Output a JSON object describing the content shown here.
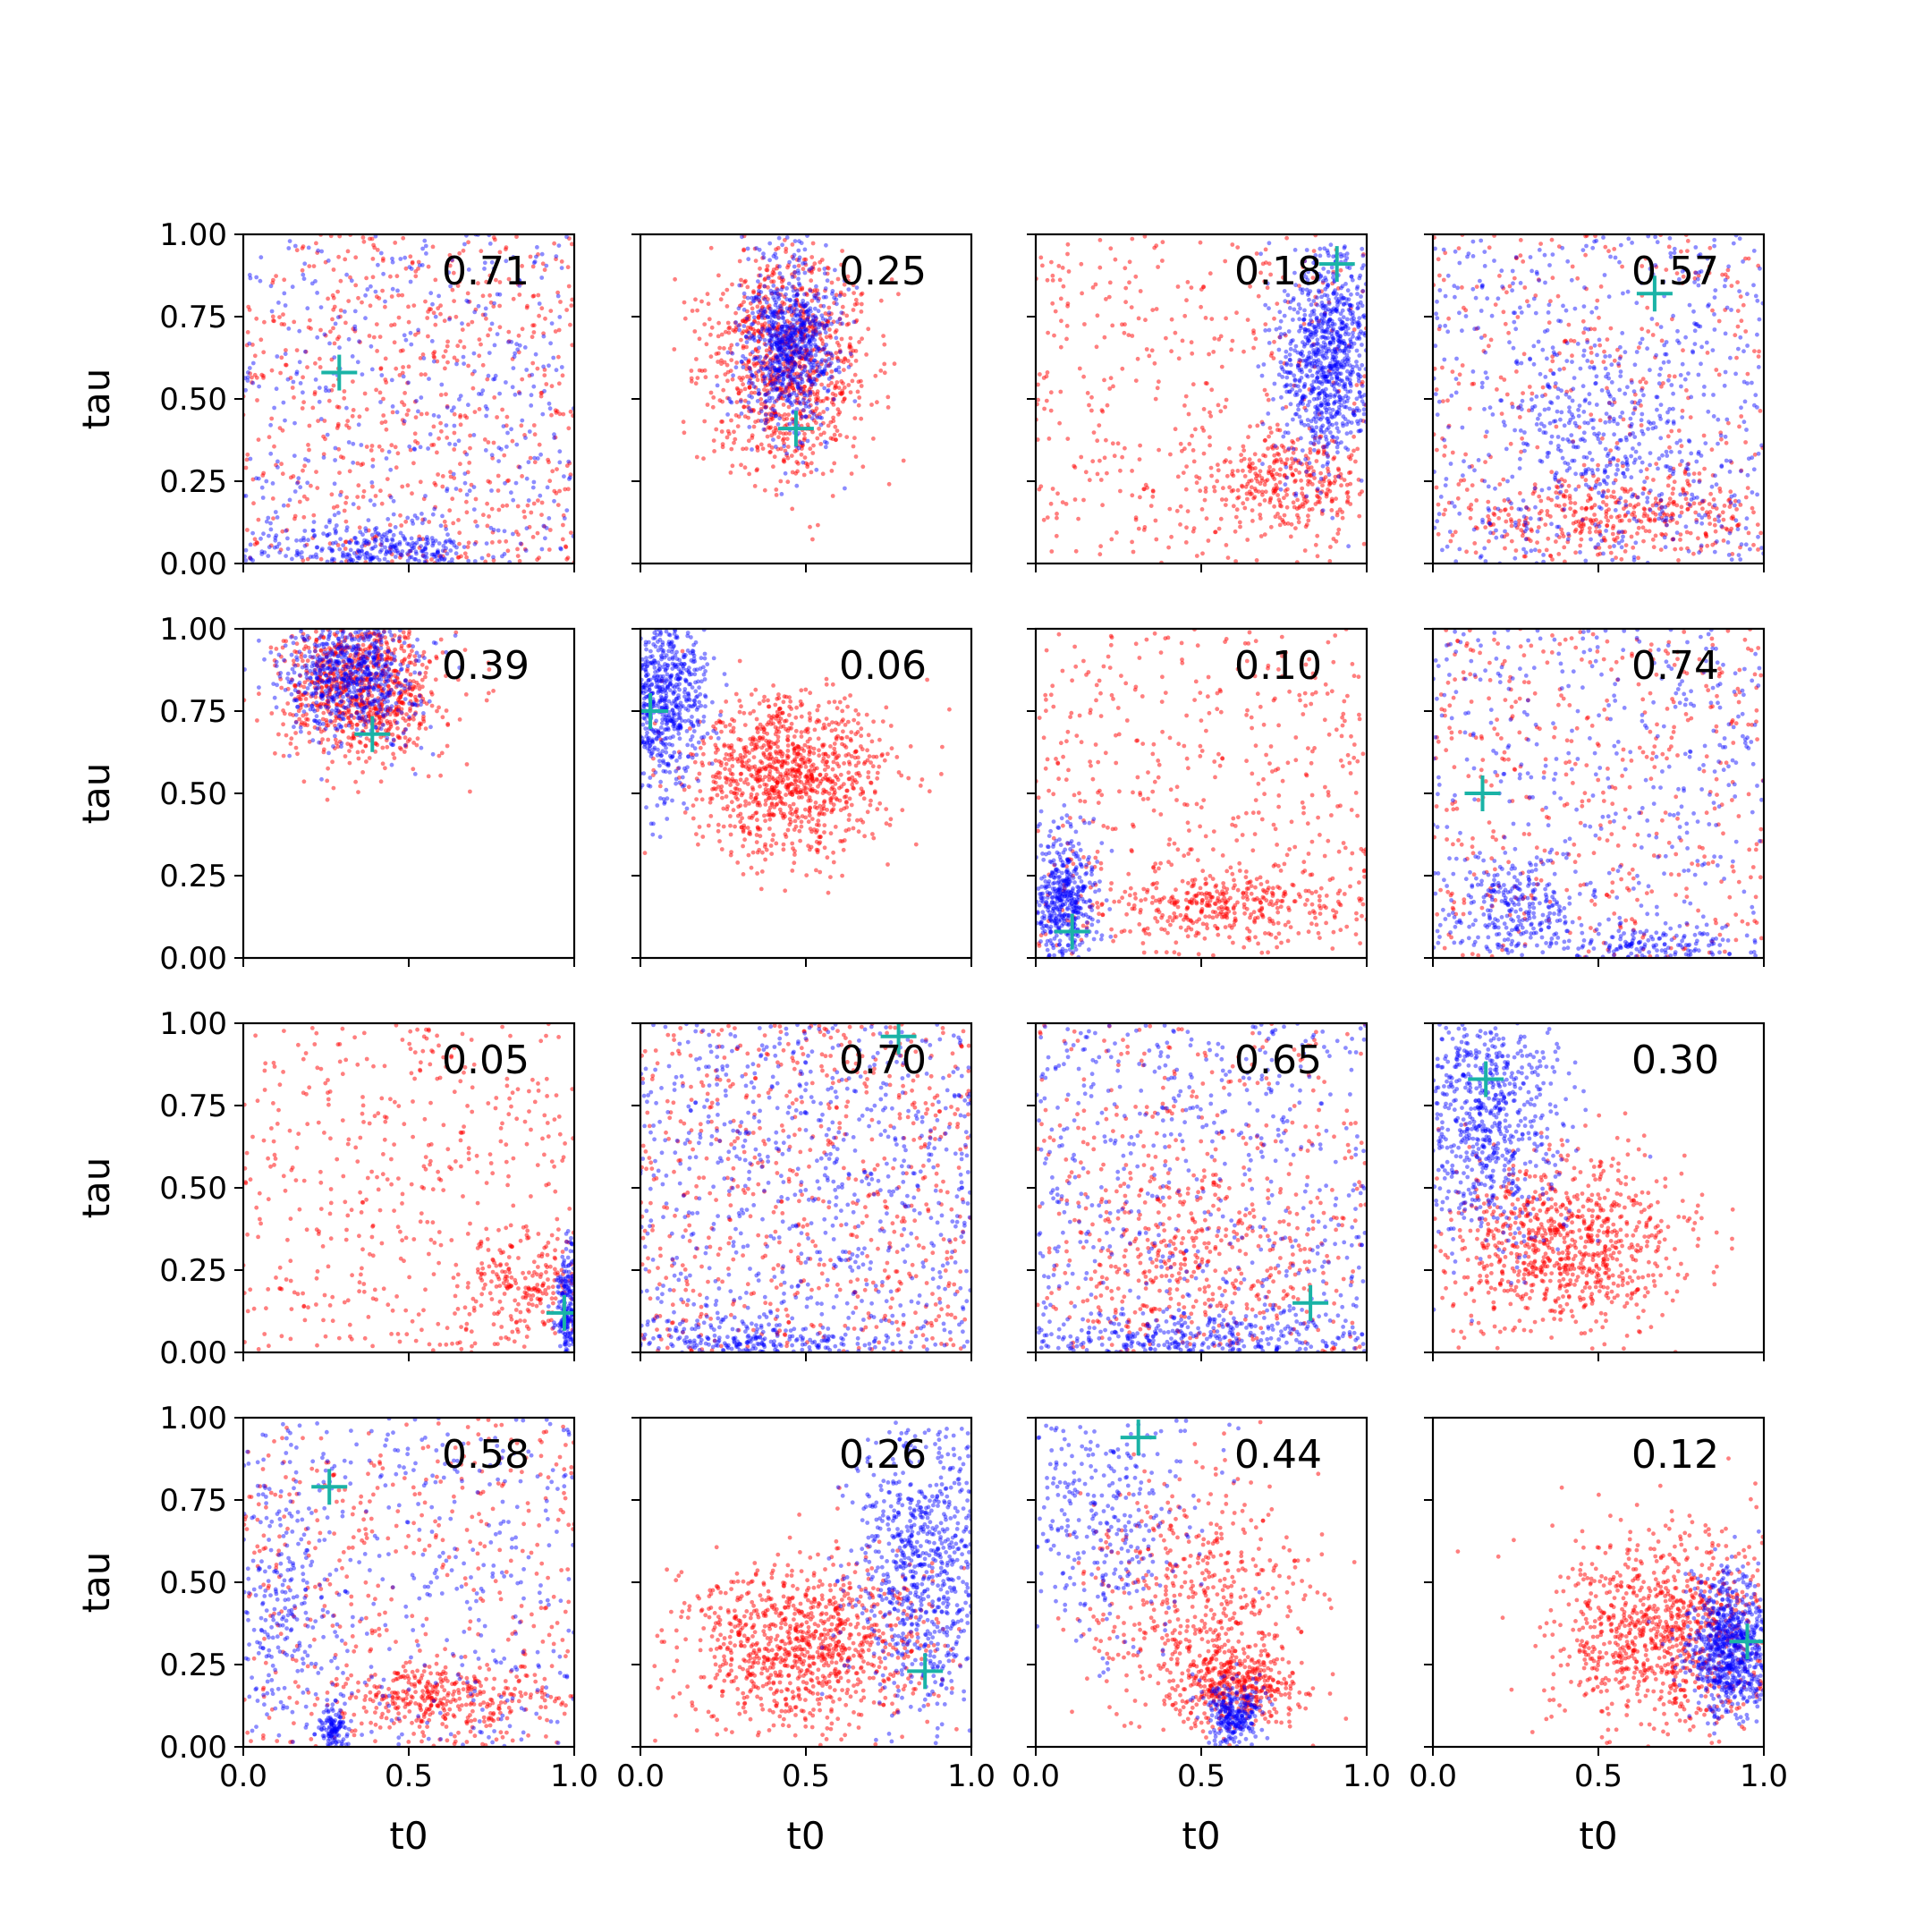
{
  "colors": {
    "series_a": "#ff0000",
    "series_b": "#0000ff",
    "marker": "#1ab3a6",
    "axes": "#000000",
    "background": "#ffffff"
  },
  "chart_data": {
    "type": "scatter",
    "layout": "4x4 grid of subplots, shared axes",
    "xlabel": "t0",
    "ylabel": "tau",
    "xlim": [
      0,
      1
    ],
    "ylim": [
      0,
      1
    ],
    "x_ticks": [
      "0.0",
      "0.5",
      "1.0"
    ],
    "y_ticks": [
      "0.00",
      "0.25",
      "0.50",
      "0.75",
      "1.00"
    ],
    "grid": false,
    "series": [
      {
        "name": "",
        "color": "#ff0000",
        "marker": "dot",
        "alpha": 0.5
      },
      {
        "name": "",
        "color": "#0000ff",
        "marker": "dot",
        "alpha": 0.5
      },
      {
        "name": "",
        "color": "#1ab3a6",
        "marker": "plus"
      }
    ],
    "panels": [
      {
        "label": "0.71",
        "marker": [
          0.29,
          0.58
        ],
        "red": {
          "spread": "uniform",
          "count": 650,
          "lo": 0
        },
        "blue": {
          "spread": "mix",
          "count": 750,
          "parts": [
            {
              "w": 0.55,
              "uni": true
            },
            {
              "w": 0.45,
              "cx": 0.4,
              "cy": 0.03,
              "sx": 0.18,
              "sy": 0.04
            }
          ]
        }
      },
      {
        "label": "0.25",
        "marker": [
          0.47,
          0.41
        ],
        "red": {
          "spread": "gauss",
          "count": 1000,
          "cx": 0.45,
          "cy": 0.62,
          "sx": 0.12,
          "sy": 0.17
        },
        "blue": {
          "spread": "gauss",
          "count": 800,
          "cx": 0.45,
          "cy": 0.66,
          "sx": 0.07,
          "sy": 0.14
        }
      },
      {
        "label": "0.18",
        "marker": [
          0.91,
          0.91
        ],
        "red": {
          "spread": "mix",
          "count": 700,
          "parts": [
            {
              "w": 0.55,
              "uni": true
            },
            {
              "w": 0.45,
              "cx": 0.75,
              "cy": 0.25,
              "sx": 0.12,
              "sy": 0.08
            }
          ]
        },
        "blue": {
          "spread": "gauss",
          "count": 900,
          "cx": 0.88,
          "cy": 0.63,
          "sx": 0.07,
          "sy": 0.16
        }
      },
      {
        "label": "0.57",
        "marker": [
          0.67,
          0.82
        ],
        "red": {
          "spread": "mix",
          "count": 700,
          "parts": [
            {
              "w": 0.5,
              "uni": true
            },
            {
              "w": 0.5,
              "cx": 0.55,
              "cy": 0.15,
              "sx": 0.25,
              "sy": 0.07
            }
          ]
        },
        "blue": {
          "spread": "mix",
          "count": 800,
          "parts": [
            {
              "w": 0.7,
              "uni": true
            },
            {
              "w": 0.3,
              "cx": 0.5,
              "cy": 0.4,
              "sx": 0.15,
              "sy": 0.15
            }
          ]
        }
      },
      {
        "label": "0.39",
        "marker": [
          0.39,
          0.68
        ],
        "red": {
          "spread": "gauss",
          "count": 900,
          "cx": 0.36,
          "cy": 0.82,
          "sx": 0.12,
          "sy": 0.11
        },
        "blue": {
          "spread": "gauss",
          "count": 700,
          "cx": 0.33,
          "cy": 0.87,
          "sx": 0.1,
          "sy": 0.1
        }
      },
      {
        "label": "0.06",
        "marker": [
          0.03,
          0.75
        ],
        "red": {
          "spread": "gauss",
          "count": 1000,
          "cx": 0.45,
          "cy": 0.55,
          "sx": 0.15,
          "sy": 0.12
        },
        "blue": {
          "spread": "gauss",
          "count": 800,
          "cx": 0.06,
          "cy": 0.8,
          "sx": 0.07,
          "sy": 0.14
        }
      },
      {
        "label": "0.10",
        "marker": [
          0.11,
          0.08
        ],
        "red": {
          "spread": "mix",
          "count": 800,
          "parts": [
            {
              "w": 0.6,
              "uni": true
            },
            {
              "w": 0.4,
              "cx": 0.55,
              "cy": 0.17,
              "sx": 0.2,
              "sy": 0.05
            }
          ]
        },
        "blue": {
          "spread": "gauss",
          "count": 500,
          "cx": 0.08,
          "cy": 0.18,
          "sx": 0.05,
          "sy": 0.1
        }
      },
      {
        "label": "0.74",
        "marker": [
          0.15,
          0.5
        ],
        "red": {
          "spread": "uniform",
          "count": 450,
          "lo": 0
        },
        "blue": {
          "spread": "mix",
          "count": 800,
          "parts": [
            {
              "w": 0.55,
              "uni": true
            },
            {
              "w": 0.25,
              "cx": 0.25,
              "cy": 0.15,
              "sx": 0.1,
              "sy": 0.08
            },
            {
              "w": 0.2,
              "cx": 0.65,
              "cy": 0.04,
              "sx": 0.12,
              "sy": 0.03
            }
          ]
        }
      },
      {
        "label": "0.05",
        "marker": [
          0.97,
          0.12
        ],
        "red": {
          "spread": "mix",
          "count": 650,
          "parts": [
            {
              "w": 0.7,
              "uni": true
            },
            {
              "w": 0.3,
              "cx": 0.85,
              "cy": 0.2,
              "sx": 0.1,
              "sy": 0.08
            }
          ]
        },
        "blue": {
          "spread": "gauss",
          "count": 250,
          "cx": 0.98,
          "cy": 0.12,
          "sx": 0.02,
          "sy": 0.1
        }
      },
      {
        "label": "0.70",
        "marker": [
          0.78,
          0.96
        ],
        "red": {
          "spread": "uniform",
          "count": 650,
          "lo": 0
        },
        "blue": {
          "spread": "mix",
          "count": 1000,
          "parts": [
            {
              "w": 0.75,
              "uni": true
            },
            {
              "w": 0.25,
              "cx": 0.3,
              "cy": 0.03,
              "sx": 0.2,
              "sy": 0.04
            }
          ]
        }
      },
      {
        "label": "0.65",
        "marker": [
          0.83,
          0.15
        ],
        "red": {
          "spread": "mix",
          "count": 700,
          "parts": [
            {
              "w": 0.5,
              "uni": true
            },
            {
              "w": 0.5,
              "cx": 0.45,
              "cy": 0.3,
              "sx": 0.2,
              "sy": 0.15
            }
          ]
        },
        "blue": {
          "spread": "mix",
          "count": 900,
          "parts": [
            {
              "w": 0.6,
              "uni": true
            },
            {
              "w": 0.4,
              "cx": 0.5,
              "cy": 0.04,
              "sx": 0.3,
              "sy": 0.04
            }
          ]
        }
      },
      {
        "label": "0.30",
        "marker": [
          0.16,
          0.83
        ],
        "red": {
          "spread": "gauss",
          "count": 900,
          "cx": 0.4,
          "cy": 0.33,
          "sx": 0.18,
          "sy": 0.13
        },
        "blue": {
          "spread": "gauss",
          "count": 800,
          "cx": 0.15,
          "cy": 0.72,
          "sx": 0.12,
          "sy": 0.2
        }
      },
      {
        "label": "0.58",
        "marker": [
          0.26,
          0.79
        ],
        "red": {
          "spread": "mix",
          "count": 750,
          "parts": [
            {
              "w": 0.6,
              "uni": true
            },
            {
              "w": 0.4,
              "cx": 0.6,
              "cy": 0.15,
              "sx": 0.15,
              "sy": 0.05
            }
          ]
        },
        "blue": {
          "spread": "mix",
          "count": 700,
          "parts": [
            {
              "w": 0.55,
              "uni": true
            },
            {
              "w": 0.3,
              "cx": 0.12,
              "cy": 0.45,
              "sx": 0.08,
              "sy": 0.2
            },
            {
              "w": 0.15,
              "cx": 0.27,
              "cy": 0.05,
              "sx": 0.02,
              "sy": 0.03
            }
          ]
        }
      },
      {
        "label": "0.26",
        "marker": [
          0.86,
          0.23
        ],
        "red": {
          "spread": "gauss",
          "count": 1000,
          "cx": 0.5,
          "cy": 0.3,
          "sx": 0.18,
          "sy": 0.13
        },
        "blue": {
          "spread": "gauss",
          "count": 800,
          "cx": 0.85,
          "cy": 0.55,
          "sx": 0.1,
          "sy": 0.22
        }
      },
      {
        "label": "0.44",
        "marker": [
          0.31,
          0.94
        ],
        "red": {
          "spread": "mix",
          "count": 950,
          "parts": [
            {
              "w": 0.55,
              "cx": 0.5,
              "cy": 0.45,
              "sx": 0.18,
              "sy": 0.18
            },
            {
              "w": 0.45,
              "cx": 0.6,
              "cy": 0.18,
              "sx": 0.1,
              "sy": 0.06
            }
          ]
        },
        "blue": {
          "spread": "mix",
          "count": 650,
          "parts": [
            {
              "w": 0.55,
              "cx": 0.2,
              "cy": 0.7,
              "sx": 0.15,
              "sy": 0.2
            },
            {
              "w": 0.45,
              "cx": 0.6,
              "cy": 0.1,
              "sx": 0.04,
              "sy": 0.05
            }
          ]
        }
      },
      {
        "label": "0.12",
        "marker": [
          0.95,
          0.32
        ],
        "red": {
          "spread": "gauss",
          "count": 1000,
          "cx": 0.7,
          "cy": 0.35,
          "sx": 0.17,
          "sy": 0.15
        },
        "blue": {
          "spread": "gauss",
          "count": 800,
          "cx": 0.9,
          "cy": 0.3,
          "sx": 0.06,
          "sy": 0.11
        }
      }
    ]
  }
}
